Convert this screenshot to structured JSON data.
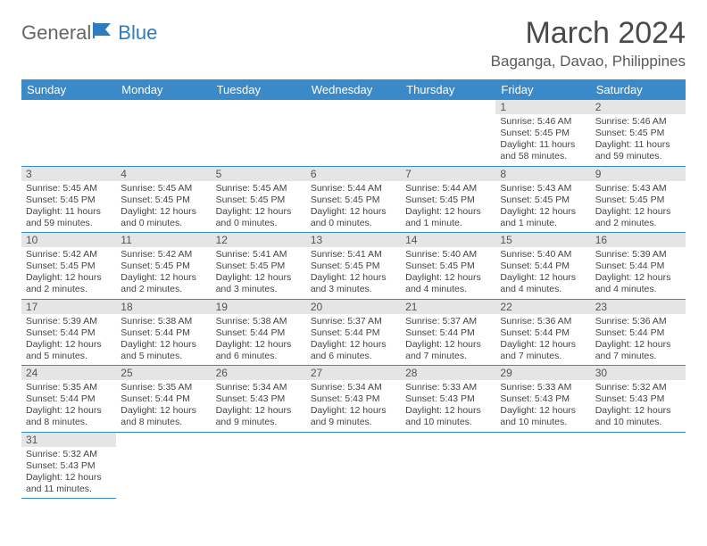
{
  "logo": {
    "general": "General",
    "blue": "Blue"
  },
  "title": "March 2024",
  "location": "Baganga, Davao, Philippines",
  "colors": {
    "headerBg": "#3a8ac9",
    "dayBg": "#e5e5e5",
    "text": "#444"
  },
  "weekdays": [
    "Sunday",
    "Monday",
    "Tuesday",
    "Wednesday",
    "Thursday",
    "Friday",
    "Saturday"
  ],
  "weeks": [
    [
      null,
      null,
      null,
      null,
      null,
      {
        "n": "1",
        "sr": "5:46 AM",
        "ss": "5:45 PM",
        "dl": "11 hours and 58 minutes."
      },
      {
        "n": "2",
        "sr": "5:46 AM",
        "ss": "5:45 PM",
        "dl": "11 hours and 59 minutes."
      }
    ],
    [
      {
        "n": "3",
        "sr": "5:45 AM",
        "ss": "5:45 PM",
        "dl": "11 hours and 59 minutes."
      },
      {
        "n": "4",
        "sr": "5:45 AM",
        "ss": "5:45 PM",
        "dl": "12 hours and 0 minutes."
      },
      {
        "n": "5",
        "sr": "5:45 AM",
        "ss": "5:45 PM",
        "dl": "12 hours and 0 minutes."
      },
      {
        "n": "6",
        "sr": "5:44 AM",
        "ss": "5:45 PM",
        "dl": "12 hours and 0 minutes."
      },
      {
        "n": "7",
        "sr": "5:44 AM",
        "ss": "5:45 PM",
        "dl": "12 hours and 1 minute."
      },
      {
        "n": "8",
        "sr": "5:43 AM",
        "ss": "5:45 PM",
        "dl": "12 hours and 1 minute."
      },
      {
        "n": "9",
        "sr": "5:43 AM",
        "ss": "5:45 PM",
        "dl": "12 hours and 2 minutes."
      }
    ],
    [
      {
        "n": "10",
        "sr": "5:42 AM",
        "ss": "5:45 PM",
        "dl": "12 hours and 2 minutes."
      },
      {
        "n": "11",
        "sr": "5:42 AM",
        "ss": "5:45 PM",
        "dl": "12 hours and 2 minutes."
      },
      {
        "n": "12",
        "sr": "5:41 AM",
        "ss": "5:45 PM",
        "dl": "12 hours and 3 minutes."
      },
      {
        "n": "13",
        "sr": "5:41 AM",
        "ss": "5:45 PM",
        "dl": "12 hours and 3 minutes."
      },
      {
        "n": "14",
        "sr": "5:40 AM",
        "ss": "5:45 PM",
        "dl": "12 hours and 4 minutes."
      },
      {
        "n": "15",
        "sr": "5:40 AM",
        "ss": "5:44 PM",
        "dl": "12 hours and 4 minutes."
      },
      {
        "n": "16",
        "sr": "5:39 AM",
        "ss": "5:44 PM",
        "dl": "12 hours and 4 minutes."
      }
    ],
    [
      {
        "n": "17",
        "sr": "5:39 AM",
        "ss": "5:44 PM",
        "dl": "12 hours and 5 minutes."
      },
      {
        "n": "18",
        "sr": "5:38 AM",
        "ss": "5:44 PM",
        "dl": "12 hours and 5 minutes."
      },
      {
        "n": "19",
        "sr": "5:38 AM",
        "ss": "5:44 PM",
        "dl": "12 hours and 6 minutes."
      },
      {
        "n": "20",
        "sr": "5:37 AM",
        "ss": "5:44 PM",
        "dl": "12 hours and 6 minutes."
      },
      {
        "n": "21",
        "sr": "5:37 AM",
        "ss": "5:44 PM",
        "dl": "12 hours and 7 minutes."
      },
      {
        "n": "22",
        "sr": "5:36 AM",
        "ss": "5:44 PM",
        "dl": "12 hours and 7 minutes."
      },
      {
        "n": "23",
        "sr": "5:36 AM",
        "ss": "5:44 PM",
        "dl": "12 hours and 7 minutes."
      }
    ],
    [
      {
        "n": "24",
        "sr": "5:35 AM",
        "ss": "5:44 PM",
        "dl": "12 hours and 8 minutes."
      },
      {
        "n": "25",
        "sr": "5:35 AM",
        "ss": "5:44 PM",
        "dl": "12 hours and 8 minutes."
      },
      {
        "n": "26",
        "sr": "5:34 AM",
        "ss": "5:43 PM",
        "dl": "12 hours and 9 minutes."
      },
      {
        "n": "27",
        "sr": "5:34 AM",
        "ss": "5:43 PM",
        "dl": "12 hours and 9 minutes."
      },
      {
        "n": "28",
        "sr": "5:33 AM",
        "ss": "5:43 PM",
        "dl": "12 hours and 10 minutes."
      },
      {
        "n": "29",
        "sr": "5:33 AM",
        "ss": "5:43 PM",
        "dl": "12 hours and 10 minutes."
      },
      {
        "n": "30",
        "sr": "5:32 AM",
        "ss": "5:43 PM",
        "dl": "12 hours and 10 minutes."
      }
    ],
    [
      {
        "n": "31",
        "sr": "5:32 AM",
        "ss": "5:43 PM",
        "dl": "12 hours and 11 minutes."
      },
      null,
      null,
      null,
      null,
      null,
      null
    ]
  ],
  "labels": {
    "sunrise": "Sunrise: ",
    "sunset": "Sunset: ",
    "daylight": "Daylight: "
  }
}
